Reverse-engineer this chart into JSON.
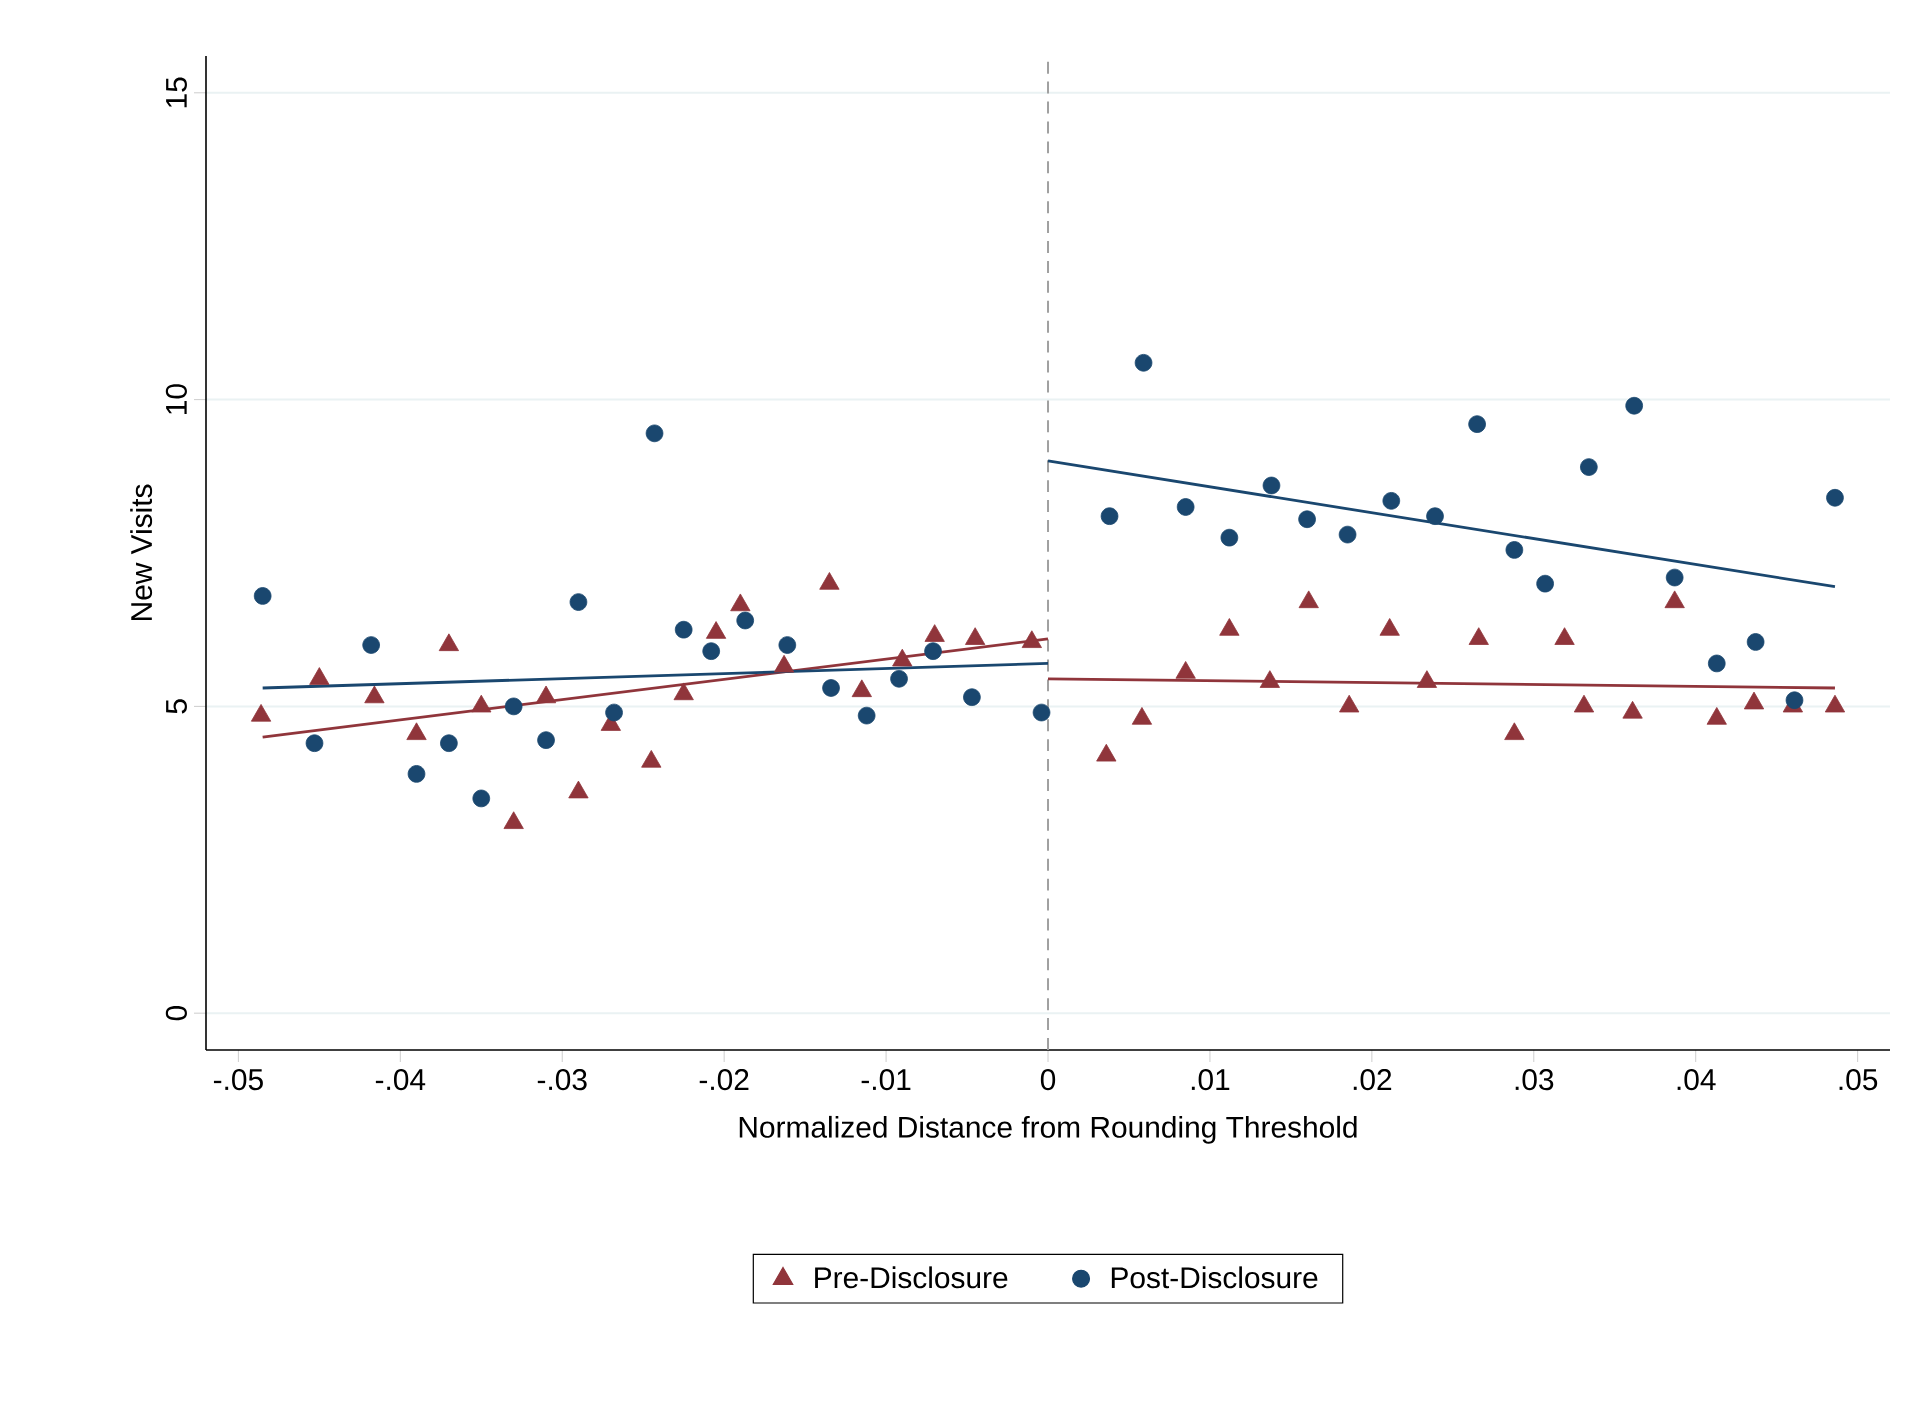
{
  "chart_data": {
    "type": "scatter",
    "xlabel": "Normalized Distance from Rounding Threshold",
    "ylabel": "New Visits",
    "xlim": [
      -0.052,
      0.052
    ],
    "ylim": [
      -0.6,
      15.6
    ],
    "xticks": [
      {
        "value": -0.05,
        "label": "-.05"
      },
      {
        "value": -0.04,
        "label": "-.04"
      },
      {
        "value": -0.03,
        "label": "-.03"
      },
      {
        "value": -0.02,
        "label": "-.02"
      },
      {
        "value": -0.01,
        "label": "-.01"
      },
      {
        "value": 0,
        "label": "0"
      },
      {
        "value": 0.01,
        "label": ".01"
      },
      {
        "value": 0.02,
        "label": ".02"
      },
      {
        "value": 0.03,
        "label": ".03"
      },
      {
        "value": 0.04,
        "label": ".04"
      },
      {
        "value": 0.05,
        "label": ".05"
      }
    ],
    "yticks": [
      0,
      5,
      10,
      15
    ],
    "grid": "y",
    "legend": "bottom",
    "ref_lines": [
      {
        "axis": "x",
        "value": 0,
        "color": "#a0a0a0",
        "line_style": "dashed"
      }
    ],
    "series": [
      {
        "name": "Pre-Disclosure",
        "marker": "triangle",
        "color": "#90353b",
        "x": [
          -0.0486,
          -0.045,
          -0.0416,
          -0.039,
          -0.037,
          -0.035,
          -0.033,
          -0.031,
          -0.029,
          -0.027,
          -0.0245,
          -0.0225,
          -0.0205,
          -0.019,
          -0.0163,
          -0.0135,
          -0.0115,
          -0.009,
          -0.007,
          -0.0045,
          -0.001,
          0.0036,
          0.0058,
          0.0085,
          0.0112,
          0.0137,
          0.0161,
          0.0186,
          0.0211,
          0.0234,
          0.0266,
          0.0288,
          0.0319,
          0.0331,
          0.0361,
          0.0387,
          0.0413,
          0.0436,
          0.046,
          0.0486
        ],
        "values": [
          4.85,
          5.45,
          5.15,
          4.55,
          6.0,
          5.0,
          3.1,
          5.15,
          3.6,
          4.7,
          4.1,
          5.2,
          6.2,
          6.65,
          5.65,
          7.0,
          5.25,
          5.75,
          6.15,
          6.1,
          6.05,
          4.2,
          4.8,
          5.55,
          6.25,
          5.4,
          6.7,
          5.0,
          6.25,
          5.4,
          6.1,
          4.55,
          6.1,
          5.0,
          4.9,
          6.7,
          4.8,
          5.05,
          5.0,
          5.0
        ]
      },
      {
        "name": "Post-Disclosure",
        "marker": "circle",
        "color": "#1a476f",
        "x": [
          -0.0485,
          -0.0453,
          -0.0418,
          -0.039,
          -0.037,
          -0.035,
          -0.033,
          -0.031,
          -0.029,
          -0.0268,
          -0.0243,
          -0.0225,
          -0.0208,
          -0.0187,
          -0.0161,
          -0.0134,
          -0.0112,
          -0.0092,
          -0.0071,
          -0.0047,
          -0.0004,
          0.0038,
          0.0059,
          0.0085,
          0.0112,
          0.0138,
          0.016,
          0.0185,
          0.0212,
          0.0239,
          0.0265,
          0.0288,
          0.0307,
          0.0334,
          0.0362,
          0.0387,
          0.0413,
          0.0437,
          0.0461,
          0.0486
        ],
        "values": [
          6.8,
          4.4,
          6.0,
          3.9,
          4.4,
          3.5,
          5.0,
          4.45,
          6.7,
          4.9,
          9.45,
          6.25,
          5.9,
          6.4,
          6.0,
          5.3,
          4.85,
          5.45,
          5.9,
          5.15,
          4.9,
          8.1,
          10.6,
          8.25,
          7.75,
          8.6,
          8.05,
          7.8,
          8.35,
          8.1,
          9.6,
          7.55,
          7.0,
          8.9,
          9.9,
          7.1,
          5.7,
          6.05,
          5.1,
          8.4
        ]
      },
      {
        "type": "line",
        "color": "#90353b",
        "x": [
          -0.0485,
          0
        ],
        "values": [
          4.5,
          6.1
        ]
      },
      {
        "type": "line",
        "color": "#1a476f",
        "x": [
          -0.0485,
          0
        ],
        "values": [
          5.3,
          5.7
        ]
      },
      {
        "type": "line",
        "color": "#90353b",
        "x": [
          0,
          0.0486
        ],
        "values": [
          5.45,
          5.3
        ]
      },
      {
        "type": "line",
        "color": "#1a476f",
        "x": [
          0,
          0.0486
        ],
        "values": [
          9.0,
          6.95
        ]
      }
    ]
  }
}
